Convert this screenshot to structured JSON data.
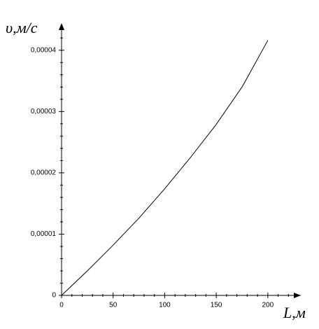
{
  "chart_data": {
    "type": "line",
    "y_label": "υ,м/с",
    "x_label": "L,м",
    "x": [
      0,
      25,
      50,
      75,
      100,
      125,
      150,
      175,
      200
    ],
    "series": [
      {
        "color": "#000000",
        "values": [
          0,
          4e-06,
          8.2e-06,
          1.26e-05,
          1.74e-05,
          2.25e-05,
          2.79e-05,
          3.4e-05,
          4.16e-05
        ]
      }
    ],
    "xlim": [
      0,
      232
    ],
    "ylim": [
      0,
      4.42e-05
    ],
    "xticks": [
      0,
      50,
      100,
      150,
      200
    ],
    "yticks": [
      0,
      {
        "value": 1e-05,
        "label": "0,00001"
      },
      {
        "value": 2e-05,
        "label": "0,00002"
      },
      {
        "value": 3e-05,
        "label": "0,00003"
      },
      {
        "value": 4e-05,
        "label": "0,00004"
      }
    ],
    "minor_xticks": [
      10,
      20,
      30,
      40,
      60,
      70,
      80,
      90,
      110,
      120,
      130,
      140,
      160,
      170,
      180,
      190,
      210,
      220
    ],
    "minor_yticks": [
      2e-06,
      4e-06,
      6e-06,
      8e-06,
      1.2e-05,
      1.4e-05,
      1.6e-05,
      1.8e-05,
      2.2e-05,
      2.4e-05,
      2.6e-05,
      2.8e-05,
      3.2e-05,
      3.4e-05,
      3.6e-05,
      3.8e-05,
      4.2e-05
    ]
  }
}
